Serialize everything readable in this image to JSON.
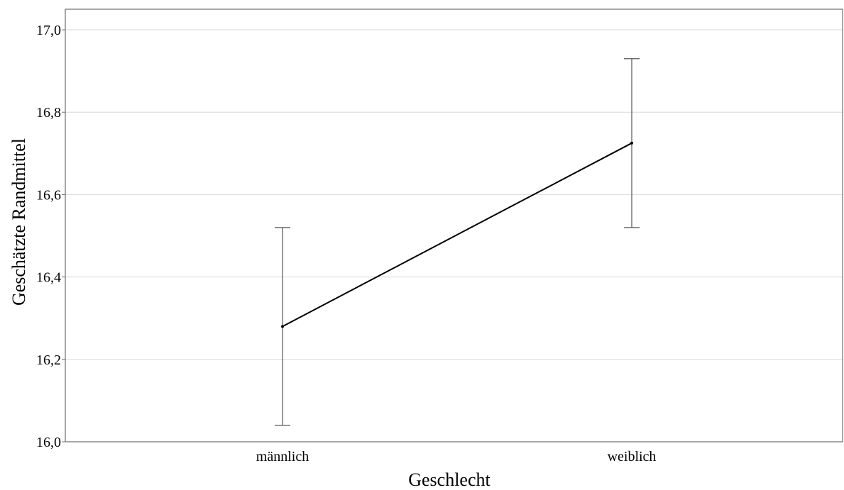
{
  "chart_data": {
    "type": "line",
    "title": "",
    "xlabel": "Geschlecht",
    "ylabel": "Geschätzte Randmittel",
    "categories": [
      "männlich",
      "weiblich"
    ],
    "series": [
      {
        "values": [
          16.28,
          16.725
        ],
        "error_low": [
          16.04,
          16.52
        ],
        "error_high": [
          16.52,
          16.93
        ]
      }
    ],
    "ylim": [
      16.0,
      17.05
    ],
    "yticks": [
      16.0,
      16.2,
      16.4,
      16.6,
      16.8,
      17.0
    ],
    "ytick_labels": [
      "16,0",
      "16,2",
      "16,4",
      "16,6",
      "16,8",
      "17,0"
    ],
    "grid": "horizontal",
    "line_color": "#000000",
    "errorbar_color": "#555555",
    "gridline_color": "#d9d9d9"
  }
}
